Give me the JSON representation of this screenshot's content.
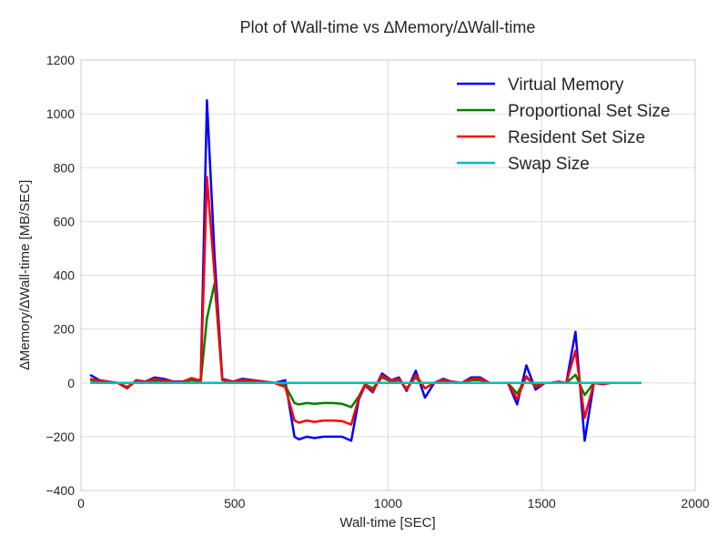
{
  "chart_data": {
    "type": "line",
    "title": "Plot of Wall-time vs ∆Memory/∆Wall-time",
    "xlabel": "Wall-time [SEC]",
    "ylabel": "∆Memory/∆Wall-time [MB/SEC]",
    "xlim": [
      0,
      2000
    ],
    "ylim": [
      -400,
      1200
    ],
    "x_ticks": [
      0,
      500,
      1000,
      1500,
      2000
    ],
    "y_ticks": [
      -400,
      -200,
      0,
      200,
      400,
      600,
      800,
      1000,
      1200
    ],
    "x_tick_labels": [
      "0",
      "500",
      "1000",
      "1500",
      "2000"
    ],
    "y_tick_labels": [
      "−400",
      "−200",
      "0",
      "200",
      "400",
      "600",
      "800",
      "1000",
      "1200"
    ],
    "grid": true,
    "legend_position": "top-right",
    "x": [
      30,
      60,
      90,
      120,
      150,
      180,
      210,
      240,
      270,
      300,
      330,
      360,
      390,
      410,
      435,
      460,
      495,
      525,
      560,
      595,
      630,
      665,
      695,
      710,
      735,
      760,
      790,
      820,
      850,
      880,
      905,
      925,
      950,
      980,
      1010,
      1035,
      1060,
      1090,
      1120,
      1150,
      1180,
      1205,
      1240,
      1270,
      1300,
      1330,
      1360,
      1390,
      1420,
      1450,
      1480,
      1510,
      1530,
      1555,
      1580,
      1610,
      1640,
      1670,
      1700,
      1725,
      1745,
      1770,
      1800,
      1825
    ],
    "series": [
      {
        "name": "Virtual Memory",
        "color": "#0000ff",
        "values": [
          30,
          10,
          5,
          0,
          -20,
          10,
          5,
          20,
          15,
          5,
          5,
          15,
          10,
          1050,
          470,
          15,
          5,
          15,
          10,
          5,
          0,
          10,
          -200,
          -210,
          -200,
          -205,
          -200,
          -200,
          -200,
          -215,
          -60,
          -10,
          -35,
          35,
          10,
          20,
          -30,
          45,
          -55,
          0,
          15,
          5,
          0,
          20,
          20,
          0,
          0,
          0,
          -80,
          65,
          -25,
          0,
          0,
          5,
          0,
          190,
          -215,
          0,
          -5,
          0,
          0,
          0,
          0,
          0
        ],
        "values_note": ""
      },
      {
        "name": "Proportional Set Size",
        "color": "#008000",
        "values": [
          10,
          5,
          3,
          0,
          -15,
          5,
          3,
          8,
          5,
          3,
          3,
          10,
          5,
          240,
          370,
          10,
          3,
          8,
          5,
          3,
          0,
          -10,
          -75,
          -80,
          -75,
          -78,
          -75,
          -75,
          -78,
          -90,
          -50,
          -5,
          -20,
          20,
          5,
          10,
          -20,
          20,
          -20,
          0,
          8,
          3,
          0,
          10,
          10,
          0,
          0,
          0,
          -40,
          20,
          -10,
          0,
          0,
          3,
          0,
          30,
          -45,
          0,
          -3,
          0,
          0,
          0,
          0,
          0
        ]
      },
      {
        "name": "Resident Set Size",
        "color": "#ff0000",
        "values": [
          15,
          8,
          4,
          0,
          -18,
          8,
          4,
          15,
          10,
          4,
          4,
          18,
          8,
          765,
          400,
          12,
          4,
          12,
          8,
          4,
          0,
          -15,
          -140,
          -148,
          -140,
          -145,
          -140,
          -140,
          -142,
          -155,
          -55,
          -8,
          -30,
          28,
          8,
          15,
          -25,
          30,
          -20,
          0,
          12,
          4,
          0,
          15,
          15,
          0,
          0,
          0,
          -60,
          25,
          -15,
          0,
          0,
          4,
          0,
          120,
          -130,
          0,
          -4,
          0,
          0,
          0,
          0,
          0
        ]
      },
      {
        "name": "Swap Size",
        "color": "#00bfbf",
        "values": [
          0,
          0,
          0,
          0,
          0,
          0,
          0,
          0,
          0,
          0,
          0,
          0,
          0,
          0,
          0,
          0,
          0,
          0,
          0,
          0,
          0,
          0,
          0,
          0,
          0,
          0,
          0,
          0,
          0,
          0,
          0,
          0,
          0,
          0,
          0,
          0,
          0,
          0,
          0,
          0,
          0,
          0,
          0,
          0,
          0,
          0,
          0,
          0,
          0,
          0,
          0,
          0,
          0,
          0,
          0,
          0,
          0,
          0,
          0,
          0,
          0,
          0,
          0,
          0
        ]
      }
    ]
  }
}
